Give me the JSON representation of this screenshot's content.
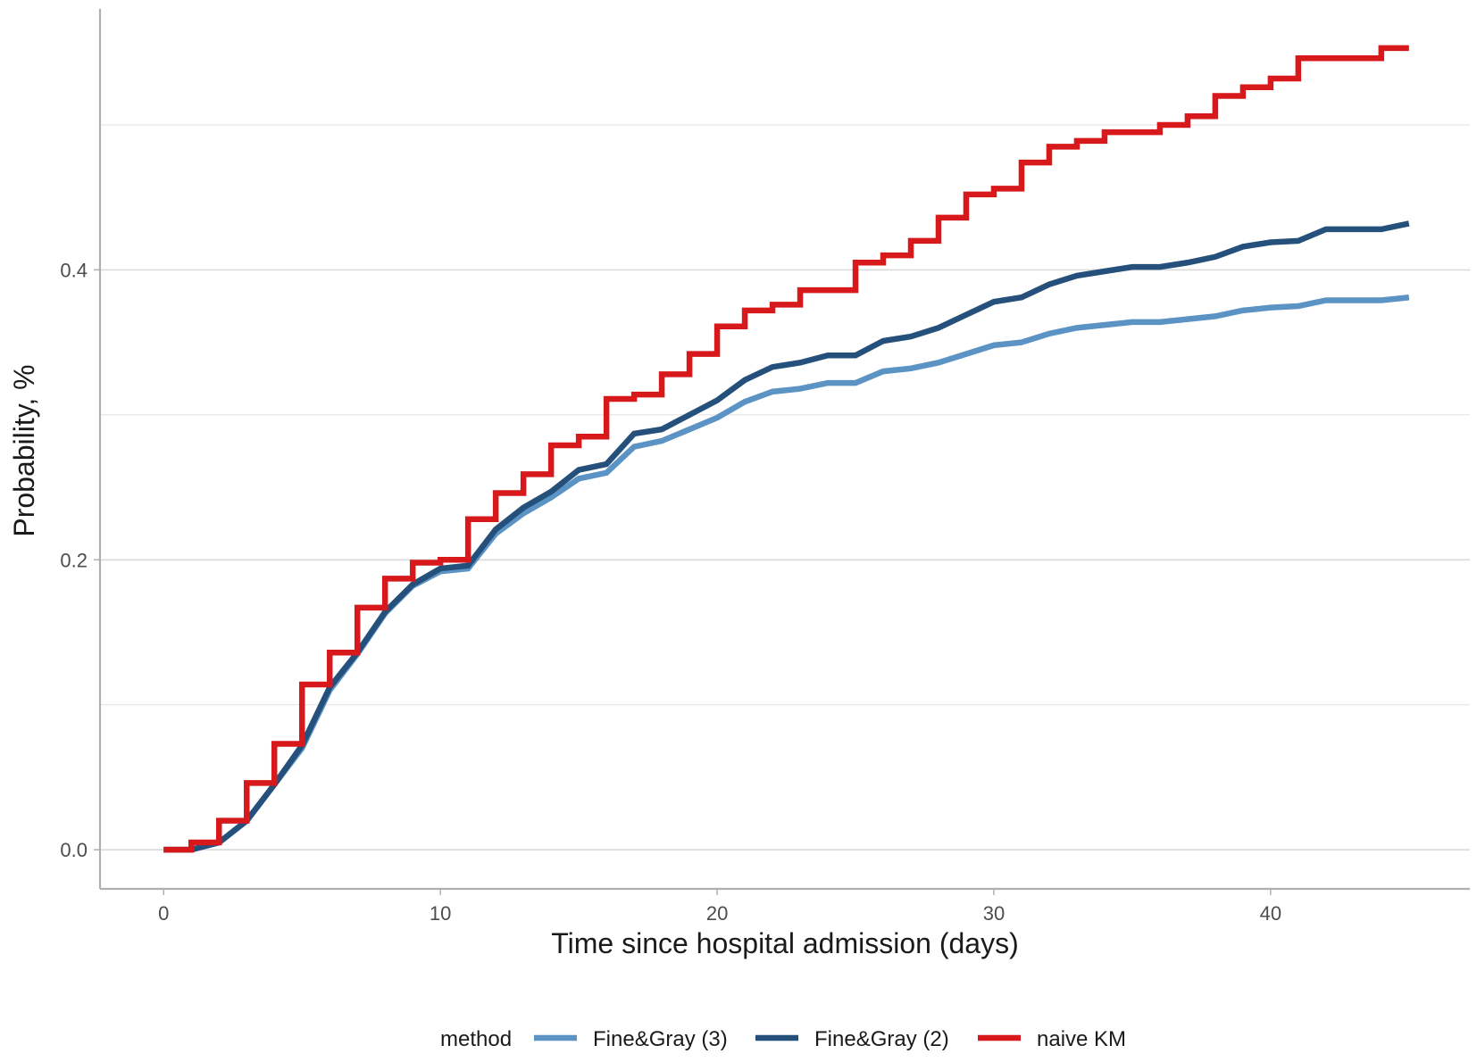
{
  "chart_data": {
    "type": "line",
    "title": "",
    "xlabel": "Time since hospital admission (days)",
    "ylabel": "Probability, %",
    "xlim": [
      -2.3,
      47.2
    ],
    "ylim": [
      -0.027,
      0.58
    ],
    "x_ticks": [
      0,
      10,
      20,
      30,
      40
    ],
    "x_tick_labels": [
      "0",
      "10",
      "20",
      "30",
      "40"
    ],
    "y_ticks": [
      0.0,
      0.2,
      0.4
    ],
    "y_tick_labels": [
      "0.0",
      "0.2",
      "0.4"
    ],
    "y_minor_gridlines": [
      0.1,
      0.3,
      0.5
    ],
    "grid": "horizontal",
    "legend_title": "method",
    "legend_position": "bottom",
    "series": [
      {
        "name": "Fine&Gray (3)",
        "color": "#5b93c5",
        "style": "line",
        "x": [
          0,
          1,
          2,
          3,
          4,
          5,
          6,
          7,
          8,
          9,
          10,
          11,
          12,
          13,
          14,
          15,
          16,
          17,
          18,
          19,
          20,
          21,
          22,
          23,
          24,
          25,
          26,
          27,
          28,
          29,
          30,
          31,
          32,
          33,
          34,
          35,
          36,
          37,
          38,
          39,
          40,
          41,
          42,
          43,
          44,
          45
        ],
        "values": [
          0,
          0,
          0.005,
          0.02,
          0.045,
          0.07,
          0.11,
          0.135,
          0.163,
          0.182,
          0.192,
          0.194,
          0.218,
          0.232,
          0.243,
          0.256,
          0.26,
          0.278,
          0.282,
          0.29,
          0.298,
          0.309,
          0.316,
          0.318,
          0.322,
          0.322,
          0.33,
          0.332,
          0.336,
          0.342,
          0.348,
          0.35,
          0.356,
          0.36,
          0.362,
          0.364,
          0.364,
          0.366,
          0.368,
          0.372,
          0.374,
          0.375,
          0.379,
          0.379,
          0.379,
          0.381
        ]
      },
      {
        "name": "Fine&Gray (2)",
        "color": "#25507c",
        "style": "line",
        "x": [
          0,
          1,
          2,
          3,
          4,
          5,
          6,
          7,
          8,
          9,
          10,
          11,
          12,
          13,
          14,
          15,
          16,
          17,
          18,
          19,
          20,
          21,
          22,
          23,
          24,
          25,
          26,
          27,
          28,
          29,
          30,
          31,
          32,
          33,
          34,
          35,
          36,
          37,
          38,
          39,
          40,
          41,
          42,
          43,
          44,
          45
        ],
        "values": [
          0,
          0,
          0.005,
          0.02,
          0.045,
          0.072,
          0.112,
          0.136,
          0.164,
          0.183,
          0.194,
          0.196,
          0.221,
          0.236,
          0.247,
          0.262,
          0.266,
          0.287,
          0.29,
          0.3,
          0.31,
          0.324,
          0.333,
          0.336,
          0.341,
          0.341,
          0.351,
          0.354,
          0.36,
          0.369,
          0.378,
          0.381,
          0.39,
          0.396,
          0.399,
          0.402,
          0.402,
          0.405,
          0.409,
          0.416,
          0.419,
          0.42,
          0.428,
          0.428,
          0.428,
          0.432
        ]
      },
      {
        "name": "naive KM",
        "color": "#d7191c",
        "style": "step",
        "x": [
          0,
          1,
          2,
          3,
          4,
          5,
          6,
          7,
          8,
          9,
          10,
          11,
          12,
          13,
          14,
          15,
          16,
          17,
          18,
          19,
          20,
          21,
          22,
          23,
          24,
          25,
          26,
          27,
          28,
          29,
          30,
          31,
          32,
          33,
          34,
          35,
          36,
          37,
          38,
          39,
          40,
          41,
          42,
          43,
          44,
          45
        ],
        "values": [
          0,
          0.005,
          0.02,
          0.046,
          0.073,
          0.114,
          0.136,
          0.167,
          0.187,
          0.198,
          0.2,
          0.228,
          0.246,
          0.259,
          0.279,
          0.285,
          0.311,
          0.314,
          0.328,
          0.342,
          0.361,
          0.372,
          0.376,
          0.386,
          0.386,
          0.405,
          0.41,
          0.42,
          0.436,
          0.452,
          0.456,
          0.474,
          0.485,
          0.489,
          0.495,
          0.495,
          0.5,
          0.506,
          0.52,
          0.526,
          0.532,
          0.546,
          0.546,
          0.546,
          0.553,
          0.553
        ]
      }
    ]
  }
}
